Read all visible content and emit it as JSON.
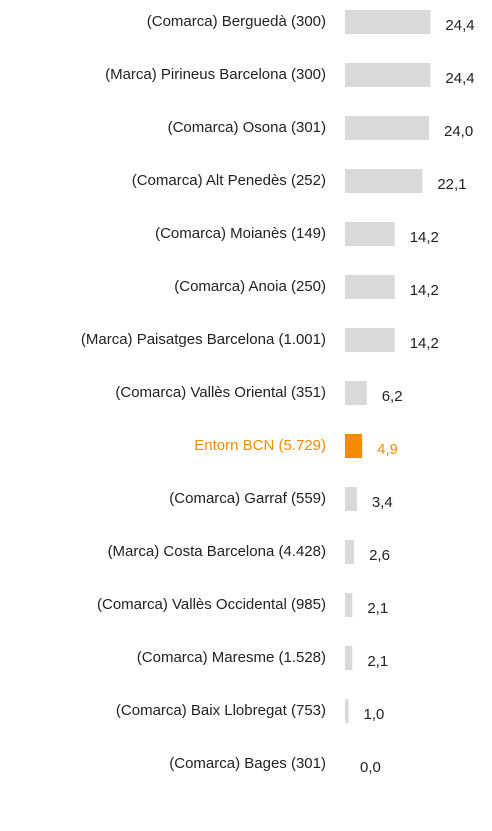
{
  "chart_data": {
    "type": "hbar",
    "categories": [
      "(Comarca) Berguedà (300)",
      "(Marca) Pirineus Barcelona (300)",
      "(Comarca) Osona (301)",
      "(Comarca) Alt Penedès (252)",
      "(Comarca) Moianès (149)",
      "(Comarca) Anoia (250)",
      "(Marca) Paisatges Barcelona (1.001)",
      "(Comarca) Vallès Oriental (351)",
      "Entorn BCN (5.729)",
      "(Comarca) Garraf (559)",
      "(Marca) Costa Barcelona (4.428)",
      "(Comarca) Vallès Occidental (985)",
      "(Comarca) Maresme (1.528)",
      "(Comarca) Baix Llobregat (753)",
      "(Comarca) Bages (301)"
    ],
    "values": [
      24.4,
      24.4,
      24.0,
      22.1,
      14.2,
      14.2,
      14.2,
      6.2,
      4.9,
      3.4,
      2.6,
      2.1,
      2.1,
      1.0,
      0.0
    ],
    "value_labels": [
      "24,4",
      "24,4",
      "24,0",
      "22,1",
      "14,2",
      "14,2",
      "14,2",
      "6,2",
      "4,9",
      "3,4",
      "2,6",
      "2,1",
      "2,1",
      "1,0",
      "0,0"
    ],
    "colors": [
      "#d9d9d9",
      "#d9d9d9",
      "#d9d9d9",
      "#d9d9d9",
      "#d9d9d9",
      "#d9d9d9",
      "#d9d9d9",
      "#d9d9d9",
      "#f28c00",
      "#d9d9d9",
      "#d9d9d9",
      "#d9d9d9",
      "#d9d9d9",
      "#d9d9d9",
      "#d9d9d9"
    ],
    "label_colors": [
      "#222222",
      "#222222",
      "#222222",
      "#222222",
      "#222222",
      "#222222",
      "#222222",
      "#222222",
      "#f28c00",
      "#222222",
      "#222222",
      "#222222",
      "#222222",
      "#222222",
      "#222222"
    ],
    "xlim": [
      0,
      25
    ]
  }
}
